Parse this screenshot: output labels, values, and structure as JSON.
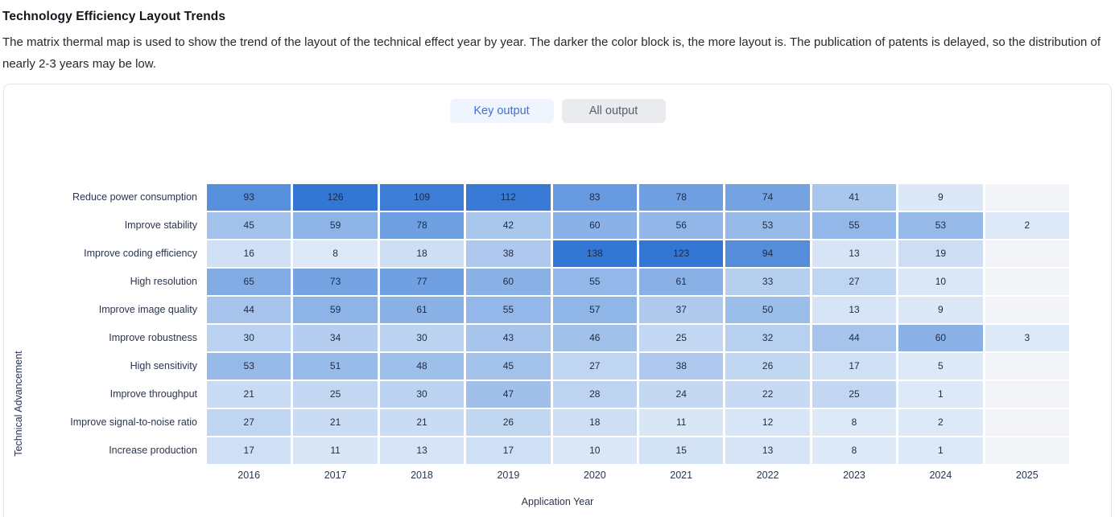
{
  "header": {
    "title": "Technology Efficiency Layout Trends",
    "description": "The matrix thermal map is used to show the trend of the layout of the technical effect year by year. The darker the color block is, the more layout is. The publication of patents is delayed, so the distribution of nearly 2-3 years may be low."
  },
  "tabs": {
    "key_output_label": "Key output",
    "all_output_label": "All output",
    "active_tab": "Key output",
    "active_text_color": "#3d6fd7",
    "active_bg_color": "#f0f5fd",
    "inactive_text_color": "#565f6e",
    "inactive_bg_color": "#e9ebee"
  },
  "chart_data": {
    "type": "heatmap",
    "xlabel": "Application Year",
    "ylabel": "Technical Advancement",
    "x_categories": [
      "2016",
      "2017",
      "2018",
      "2019",
      "2020",
      "2021",
      "2022",
      "2023",
      "2024",
      "2025"
    ],
    "y_categories": [
      "Reduce power consumption",
      "Improve stability",
      "Improve coding efficiency",
      "High resolution",
      "Improve image quality",
      "Improve robustness",
      "High sensitivity",
      "Improve throughput",
      "Improve signal-to-noise ratio",
      "Increase production"
    ],
    "rows": [
      {
        "label": "Reduce power consumption",
        "values": [
          93,
          126,
          109,
          112,
          83,
          78,
          74,
          41,
          9,
          null
        ]
      },
      {
        "label": "Improve stability",
        "values": [
          45,
          59,
          78,
          42,
          60,
          56,
          53,
          55,
          53,
          2
        ]
      },
      {
        "label": "Improve coding efficiency",
        "values": [
          16,
          8,
          18,
          38,
          138,
          123,
          94,
          13,
          19,
          null
        ]
      },
      {
        "label": "High resolution",
        "values": [
          65,
          73,
          77,
          60,
          55,
          61,
          33,
          27,
          10,
          null
        ]
      },
      {
        "label": "Improve image quality",
        "values": [
          44,
          59,
          61,
          55,
          57,
          37,
          50,
          13,
          9,
          null
        ]
      },
      {
        "label": "Improve robustness",
        "values": [
          30,
          34,
          30,
          43,
          46,
          25,
          32,
          44,
          60,
          3
        ]
      },
      {
        "label": "High sensitivity",
        "values": [
          53,
          51,
          48,
          45,
          27,
          38,
          26,
          17,
          5,
          null
        ]
      },
      {
        "label": "Improve throughput",
        "values": [
          21,
          25,
          30,
          47,
          28,
          24,
          22,
          25,
          1,
          null
        ]
      },
      {
        "label": "Improve signal-to-noise ratio",
        "values": [
          27,
          21,
          21,
          26,
          18,
          11,
          12,
          8,
          2,
          null
        ]
      },
      {
        "label": "Increase production",
        "values": [
          17,
          11,
          13,
          17,
          10,
          15,
          13,
          8,
          1,
          null
        ]
      }
    ],
    "value_range": [
      1,
      138
    ],
    "colors": {
      "scale_min": "#ebf2fa",
      "scale_max": "#3377d4",
      "scale_clamp_value": 115,
      "min_tint_fraction": 0.07,
      "empty_cell": "#f2f4f7"
    },
    "grid": false,
    "legend": "none"
  }
}
